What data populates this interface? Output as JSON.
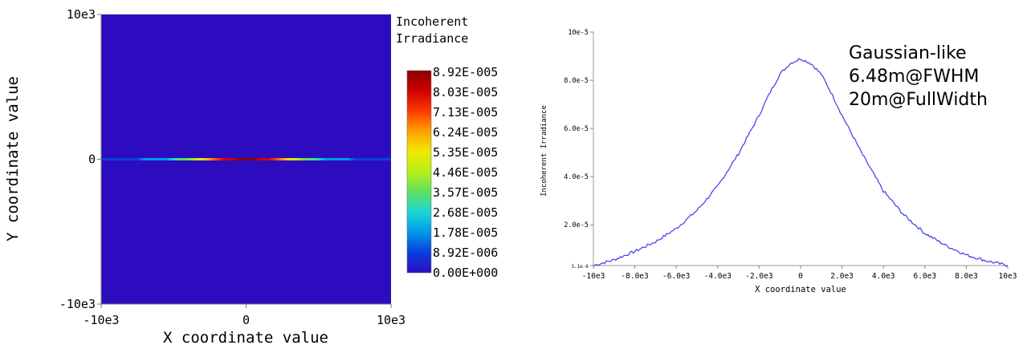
{
  "chart_data": [
    {
      "type": "heatmap",
      "xlabel": "X coordinate value",
      "ylabel": "Y coordinate value",
      "xlim": [
        -10000,
        10000
      ],
      "ylim": [
        -10000,
        10000
      ],
      "x_tick_labels": [
        "-10e3",
        "0",
        "10e3"
      ],
      "y_tick_labels": [
        "10e3",
        "0",
        "-10e3"
      ],
      "x_ticks": [
        -10000,
        0,
        10000
      ],
      "y_ticks": [
        10000,
        0,
        -10000
      ],
      "colorbar_title": [
        "Incoherent",
        "Irradiance"
      ],
      "colorbar_labels": [
        "8.92E-005",
        "8.03E-005",
        "7.13E-005",
        "6.24E-005",
        "5.35E-005",
        "4.46E-005",
        "3.57E-005",
        "2.68E-005",
        "1.78E-005",
        "8.92E-006",
        "0.00E+000"
      ],
      "colorbar_range": [
        0,
        8.92e-05
      ],
      "background_color": "#2d0cbf",
      "colormap": [
        "#2d0cbf",
        "#0a3ee0",
        "#0099e6",
        "#19d8d8",
        "#5fe05f",
        "#b8f01a",
        "#f0e800",
        "#ffa000",
        "#ff3a00",
        "#d00000",
        "#8a0000"
      ],
      "line_profile_y": 0,
      "line_profile_sigma": 2750,
      "line_profile_peak": 8.92e-05
    },
    {
      "type": "line",
      "xlabel": "X coordinate value",
      "ylabel": "Incoherent Irradiance",
      "xlim": [
        -10000,
        10000
      ],
      "ylim": [
        3.1e-06,
        0.0001
      ],
      "x_tick_labels": [
        "-10e3",
        "-8.0e3",
        "-6.0e3",
        "-4.0e3",
        "-2.0e3",
        "0",
        "2.0e3",
        "4.0e3",
        "6.0e3",
        "8.0e3",
        "10e3"
      ],
      "x_ticks": [
        -10000,
        -8000,
        -6000,
        -4000,
        -2000,
        0,
        2000,
        4000,
        6000,
        8000,
        10000
      ],
      "y_tick_labels": [
        "10e-5",
        "8.0e-5",
        "6.0e-5",
        "4.0e-5",
        "2.0e-5",
        "3.1e-6"
      ],
      "y_ticks": [
        0.0001,
        8e-05,
        6e-05,
        4e-05,
        2e-05,
        3.1e-06
      ],
      "line_color": "#3a3af0",
      "annotation": [
        "Gaussian-like",
        "6.48m@FWHM",
        "20m@FullWidth"
      ],
      "x": [
        -10000,
        -9000,
        -8000,
        -7000,
        -6000,
        -5000,
        -4000,
        -3000,
        -2000,
        -1500,
        -1000,
        -500,
        0,
        500,
        1000,
        1500,
        2000,
        3000,
        4000,
        5000,
        6000,
        7000,
        8000,
        9000,
        10000
      ],
      "y": [
        3.1e-06,
        5.5e-06,
        9e-06,
        1.3e-05,
        1.85e-05,
        2.6e-05,
        3.6e-05,
        4.95e-05,
        6.55e-05,
        7.45e-05,
        8.25e-05,
        8.7e-05,
        8.9e-05,
        8.7e-05,
        8.25e-05,
        7.45e-05,
        6.55e-05,
        4.9e-05,
        3.4e-05,
        2.4e-05,
        1.65e-05,
        1.15e-05,
        7.5e-06,
        5e-06,
        3.1e-06
      ]
    }
  ]
}
